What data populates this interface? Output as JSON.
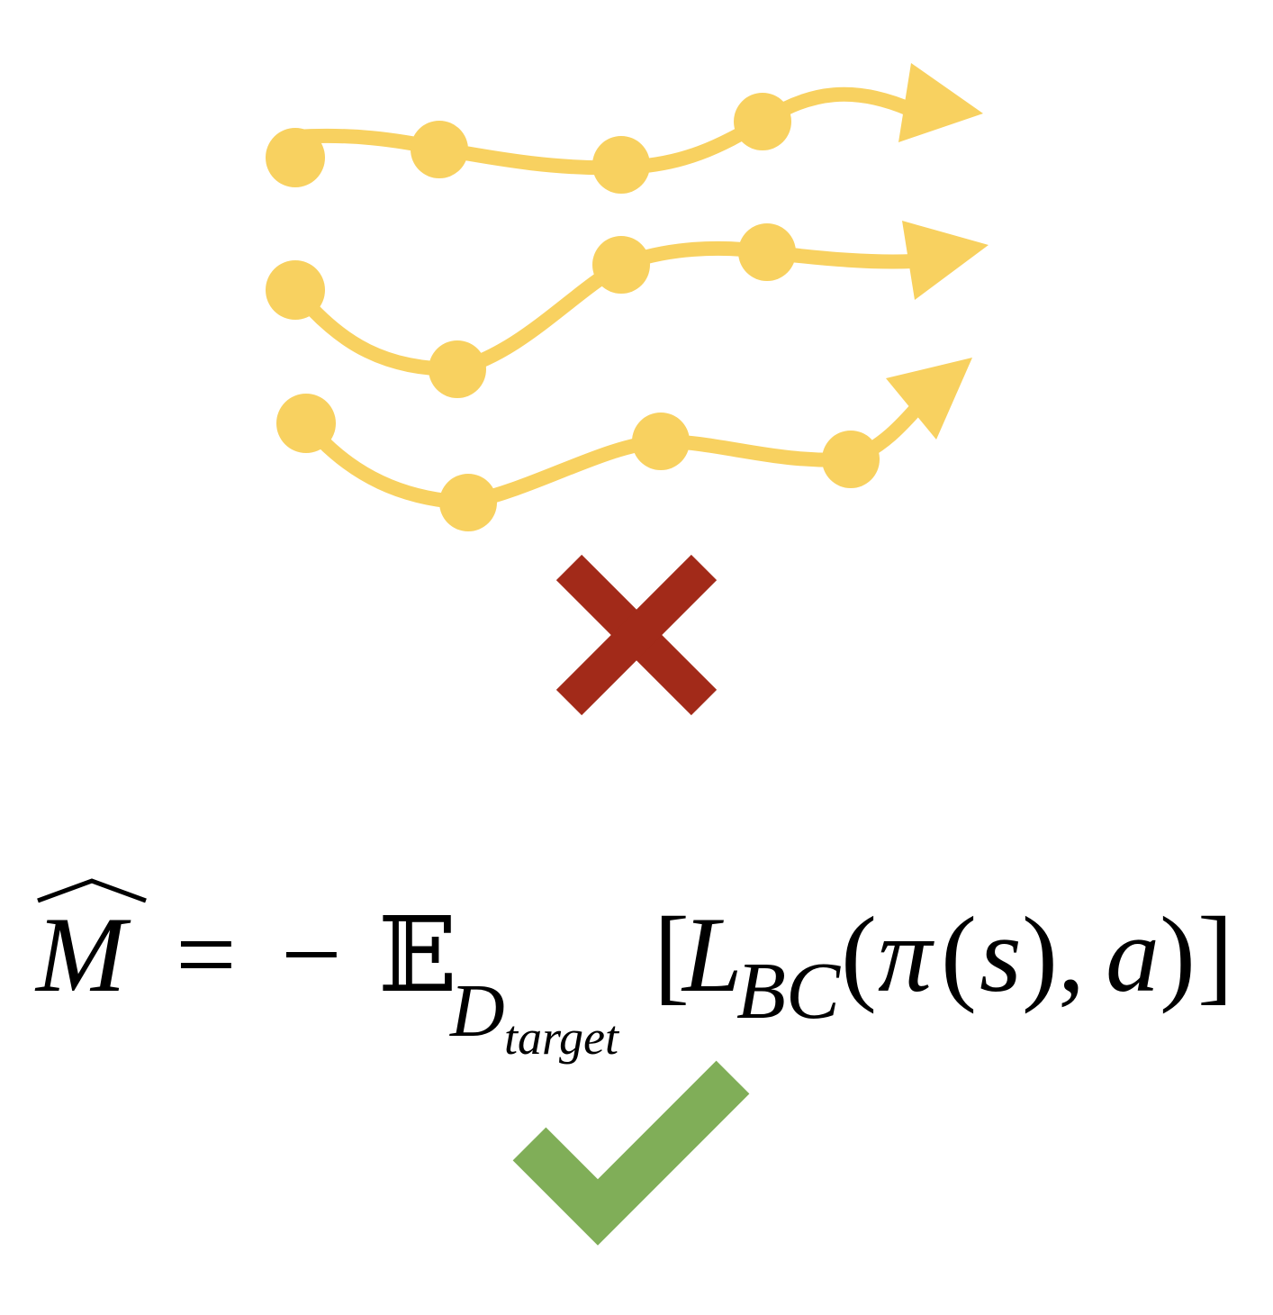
{
  "colors": {
    "trajectory": "#F8D160",
    "cross": "#A22A19",
    "check": "#80AE58",
    "text": "#000000",
    "background": "#FFFFFF"
  },
  "icons": {
    "trajectories": "trajectory-arrows-icon",
    "rejected": "cross-icon",
    "accepted": "check-icon"
  },
  "formula": {
    "lhs_symbol": "M",
    "equals": "=",
    "minus": "−",
    "expectation_symbol": "𝔼",
    "dataset_symbol": "D",
    "dataset_subscript": "target",
    "open_bracket": "[",
    "loss_symbol": "L",
    "loss_subscript": "BC",
    "open_paren": "(",
    "policy_symbol": "π",
    "state_open": "(",
    "state_symbol": "s",
    "state_close": ")",
    "comma": ",",
    "action_symbol": "a",
    "close_paren": ")",
    "close_bracket": "]"
  }
}
